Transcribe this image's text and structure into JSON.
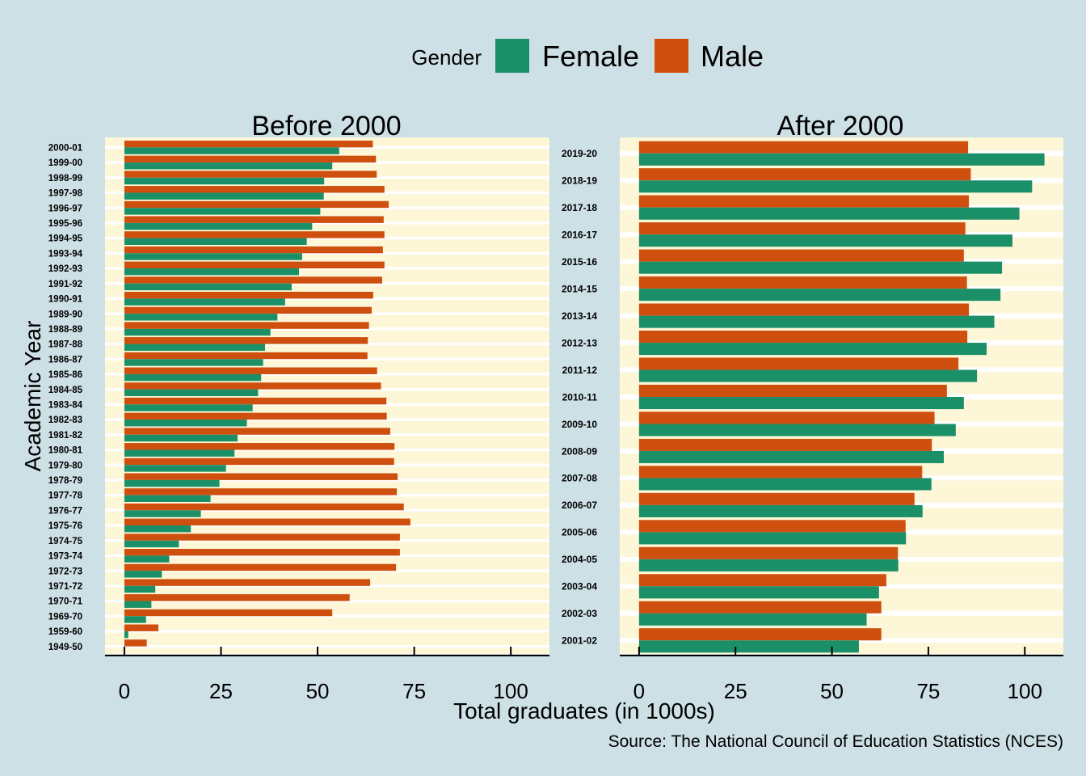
{
  "legend": {
    "title": "Gender",
    "items": [
      {
        "label": "Female",
        "color": "#1b9068"
      },
      {
        "label": "Male",
        "color": "#cf4f0e"
      }
    ]
  },
  "axis": {
    "ylabel": "Academic Year",
    "xlabel": "Total graduates (in 1000s)",
    "ticks": [
      0,
      25,
      50,
      75,
      100
    ],
    "xlim": [
      -5,
      110
    ]
  },
  "caption": "Source: The National Council of Education Statistics (NCES)",
  "colors": {
    "background": "#cde0e6",
    "panel": "#fdf7d7",
    "grid": "#ffffff",
    "axis": "#000000"
  },
  "chart_data": [
    {
      "type": "bar",
      "orientation": "horizontal",
      "title": "Before 2000",
      "categories": [
        "1949-50",
        "1959-60",
        "1969-70",
        "1970-71",
        "1971-72",
        "1972-73",
        "1973-74",
        "1974-75",
        "1975-76",
        "1976-77",
        "1977-78",
        "1978-79",
        "1979-80",
        "1980-81",
        "1981-82",
        "1982-83",
        "1983-84",
        "1984-85",
        "1985-86",
        "1986-87",
        "1987-88",
        "1988-89",
        "1989-90",
        "1990-91",
        "1991-92",
        "1992-93",
        "1993-94",
        "1994-95",
        "1995-96",
        "1996-97",
        "1997-98",
        "1998-99",
        "1999-00",
        "2000-01"
      ],
      "series": [
        {
          "name": "Female",
          "values": [
            0.0,
            1.0,
            5.6,
            7.0,
            8.0,
            9.7,
            11.6,
            14.1,
            17.2,
            19.8,
            22.3,
            24.6,
            26.3,
            28.5,
            29.3,
            31.7,
            33.2,
            34.6,
            35.4,
            35.9,
            36.4,
            37.8,
            39.6,
            41.6,
            43.3,
            45.2,
            46.0,
            47.2,
            48.6,
            50.7,
            51.6,
            51.7,
            53.8,
            55.6
          ]
        },
        {
          "name": "Male",
          "values": [
            5.8,
            8.8,
            53.8,
            58.3,
            63.6,
            70.3,
            71.3,
            71.3,
            74.0,
            72.3,
            70.5,
            70.7,
            69.8,
            69.9,
            68.8,
            67.9,
            67.8,
            66.4,
            65.4,
            62.9,
            63.0,
            63.3,
            64.0,
            64.4,
            66.7,
            67.3,
            66.9,
            67.3,
            67.1,
            68.4,
            67.3,
            65.3,
            65.1,
            64.3
          ]
        }
      ]
    },
    {
      "type": "bar",
      "orientation": "horizontal",
      "title": "After 2000",
      "categories": [
        "2001-02",
        "2002-03",
        "2003-04",
        "2004-05",
        "2005-06",
        "2006-07",
        "2007-08",
        "2008-09",
        "2009-10",
        "2010-11",
        "2011-12",
        "2012-13",
        "2013-14",
        "2014-15",
        "2015-16",
        "2016-17",
        "2017-18",
        "2018-19",
        "2019-20"
      ],
      "series": [
        {
          "name": "Female",
          "values": [
            57.0,
            59.0,
            62.2,
            67.2,
            69.2,
            73.5,
            75.8,
            79.0,
            82.1,
            84.2,
            87.6,
            90.1,
            92.1,
            93.7,
            94.1,
            96.8,
            98.6,
            101.9,
            105.1
          ]
        },
        {
          "name": "Male",
          "values": [
            62.8,
            62.8,
            64.1,
            67.1,
            69.1,
            71.4,
            73.4,
            75.9,
            76.6,
            79.8,
            82.8,
            85.1,
            85.5,
            85.0,
            84.2,
            84.6,
            85.5,
            86.0,
            85.3
          ]
        }
      ]
    }
  ]
}
